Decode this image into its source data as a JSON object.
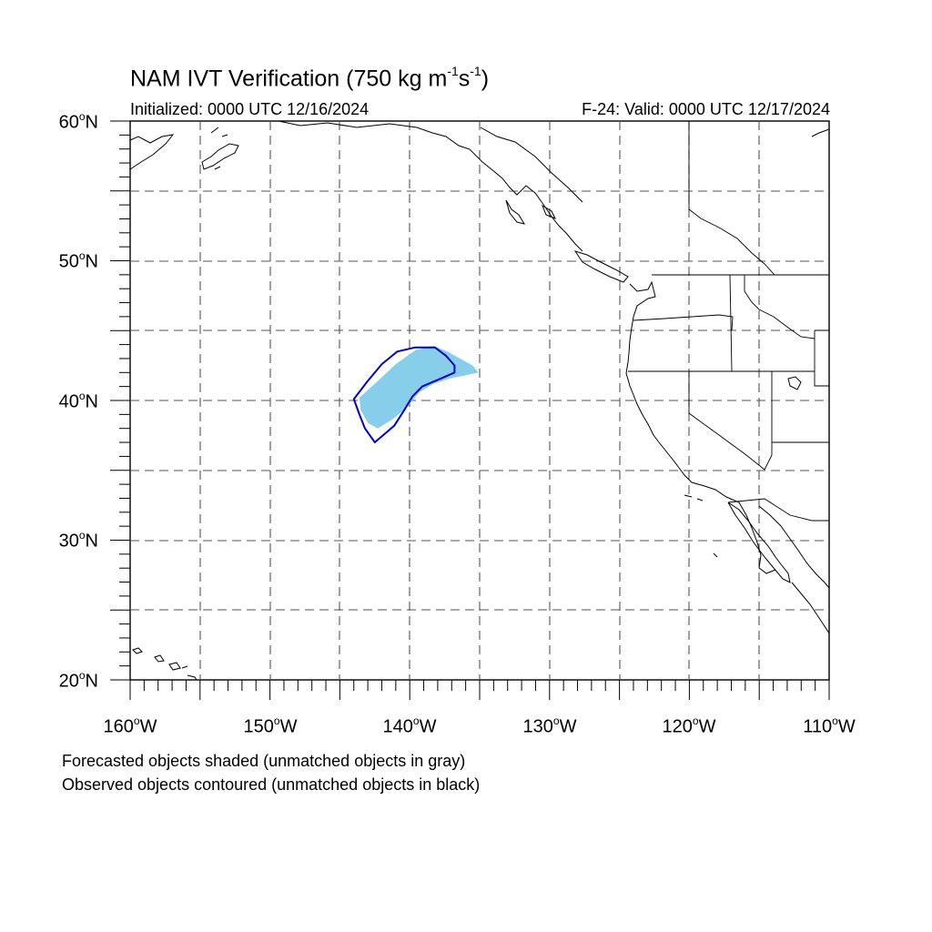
{
  "title": {
    "prefix": "NAM IVT Verification (750 kg m",
    "exp1": "-1",
    "middle": "s",
    "exp2": "-1",
    "suffix": ")"
  },
  "initialized": "Initialized: 0000 UTC 12/16/2024",
  "valid": "F-24: Valid: 0000 UTC 12/17/2024",
  "map": {
    "lon_range": [
      -160,
      -110
    ],
    "lat_range": [
      20,
      60
    ],
    "grid": "dashed every 5 degrees",
    "lat_labels": [
      {
        "deg": "60",
        "hemi": "N"
      },
      {
        "deg": "50",
        "hemi": "N"
      },
      {
        "deg": "40",
        "hemi": "N"
      },
      {
        "deg": "30",
        "hemi": "N"
      },
      {
        "deg": "20",
        "hemi": "N"
      }
    ],
    "lon_labels": [
      {
        "deg": "160",
        "hemi": "W"
      },
      {
        "deg": "150",
        "hemi": "W"
      },
      {
        "deg": "140",
        "hemi": "W"
      },
      {
        "deg": "130",
        "hemi": "W"
      },
      {
        "deg": "120",
        "hemi": "W"
      },
      {
        "deg": "110",
        "hemi": "W"
      }
    ]
  },
  "objects": {
    "forecast_color": "#87ceeb",
    "observed_color": "#0000cd",
    "forecast_outline": [
      [
        -143.6,
        40.2
      ],
      [
        -142.5,
        41.2
      ],
      [
        -141.0,
        42.6
      ],
      [
        -139.6,
        43.6
      ],
      [
        -138.3,
        43.9
      ],
      [
        -137.3,
        43.5
      ],
      [
        -136.4,
        43.0
      ],
      [
        -135.5,
        42.5
      ],
      [
        -135.1,
        42.0
      ],
      [
        -136.0,
        41.8
      ],
      [
        -137.0,
        41.6
      ],
      [
        -138.3,
        41.2
      ],
      [
        -139.3,
        40.6
      ],
      [
        -140.2,
        39.5
      ],
      [
        -141.3,
        38.6
      ],
      [
        -142.3,
        38.0
      ],
      [
        -143.0,
        38.4
      ],
      [
        -143.5,
        39.3
      ]
    ],
    "observed_outline": [
      [
        -144.0,
        40.1
      ],
      [
        -143.0,
        41.4
      ],
      [
        -142.0,
        42.6
      ],
      [
        -140.9,
        43.5
      ],
      [
        -139.6,
        43.8
      ],
      [
        -138.2,
        43.8
      ],
      [
        -137.4,
        43.2
      ],
      [
        -136.8,
        42.5
      ],
      [
        -136.8,
        42.0
      ],
      [
        -137.7,
        41.6
      ],
      [
        -139.1,
        41.0
      ],
      [
        -139.8,
        40.3
      ],
      [
        -140.4,
        39.3
      ],
      [
        -141.1,
        38.2
      ],
      [
        -142.5,
        37.0
      ],
      [
        -143.2,
        38.0
      ],
      [
        -143.6,
        39.0
      ]
    ]
  },
  "footnotes": {
    "forecast": "Forecasted objects shaded (unmatched objects in gray)",
    "observed": "Observed objects contoured (unmatched objects in black)"
  }
}
